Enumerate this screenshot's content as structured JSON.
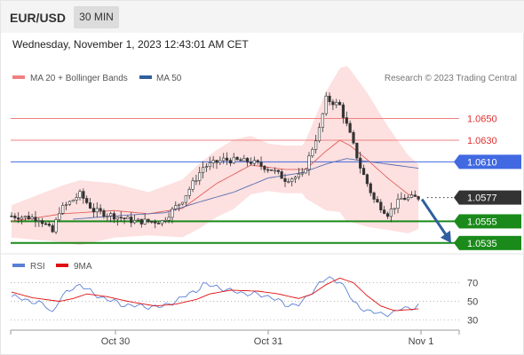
{
  "header": {
    "symbol": "EUR/USD",
    "timeframe": "30 MIN"
  },
  "datetime": "Wednesday, November 1, 2023 12:43:01 AM CET",
  "copyright": "Research © 2023 Trading Central",
  "legend": [
    {
      "label": "MA 20 + Bollinger Bands",
      "color": "#f08080"
    },
    {
      "label": "MA 50",
      "color": "#2f5f9e"
    }
  ],
  "colors": {
    "band_fill": "#fde0e0",
    "ma20": "#e0605a",
    "ma50": "#5a6fb0",
    "candle": "#333333",
    "resistance": "#f08080",
    "pivot": "#4169e1",
    "support": "#1a8a1a",
    "current": "#333333",
    "arrow": "#2f5f9e",
    "rsi": "#5a7fd6",
    "rsi_ma": "#e01010"
  },
  "chart_data": [
    {
      "type": "candlestick",
      "title": "EUR/USD 30 MIN",
      "x_ticks": [
        "Oct 30",
        "Oct 31",
        "Nov 1"
      ],
      "ylim": [
        1.0525,
        1.073
      ],
      "levels": [
        {
          "label": "1.0650",
          "value": 1.065,
          "kind": "resistance"
        },
        {
          "label": "1.0630",
          "value": 1.063,
          "kind": "resistance"
        },
        {
          "label": "1.0610",
          "value": 1.061,
          "kind": "pivot"
        },
        {
          "label": "1.0577",
          "value": 1.0577,
          "kind": "current"
        },
        {
          "label": "1.0555",
          "value": 1.0555,
          "kind": "support"
        },
        {
          "label": "1.0535",
          "value": 1.0535,
          "kind": "support"
        }
      ],
      "close_anchors": [
        [
          0,
          1.056
        ],
        [
          8,
          1.0558
        ],
        [
          12,
          1.0545
        ],
        [
          14,
          1.0565
        ],
        [
          20,
          1.058
        ],
        [
          24,
          1.0565
        ],
        [
          30,
          1.056
        ],
        [
          36,
          1.0555
        ],
        [
          44,
          1.0555
        ],
        [
          50,
          1.0575
        ],
        [
          56,
          1.0605
        ],
        [
          62,
          1.0612
        ],
        [
          70,
          1.061
        ],
        [
          76,
          1.0603
        ],
        [
          80,
          1.0594
        ],
        [
          85,
          1.0597
        ],
        [
          90,
          1.064
        ],
        [
          92,
          1.0668
        ],
        [
          96,
          1.0662
        ],
        [
          99,
          1.0635
        ],
        [
          102,
          1.0605
        ],
        [
          104,
          1.059
        ],
        [
          106,
          1.0575
        ],
        [
          110,
          1.0562
        ],
        [
          114,
          1.0576
        ],
        [
          119,
          1.0577
        ]
      ],
      "ma20_anchors": [
        [
          0,
          1.0555
        ],
        [
          15,
          1.0562
        ],
        [
          30,
          1.0565
        ],
        [
          40,
          1.0562
        ],
        [
          50,
          1.0567
        ],
        [
          60,
          1.059
        ],
        [
          70,
          1.0607
        ],
        [
          80,
          1.0603
        ],
        [
          86,
          1.0603
        ],
        [
          92,
          1.062
        ],
        [
          96,
          1.063
        ],
        [
          99,
          1.0625
        ],
        [
          104,
          1.0612
        ],
        [
          110,
          1.0595
        ],
        [
          116,
          1.058
        ],
        [
          119,
          1.0578
        ]
      ],
      "ma50_anchors": [
        [
          18,
          1.0557
        ],
        [
          30,
          1.056
        ],
        [
          45,
          1.0563
        ],
        [
          55,
          1.0573
        ],
        [
          65,
          1.0582
        ],
        [
          75,
          1.0595
        ],
        [
          85,
          1.06
        ],
        [
          92,
          1.0608
        ],
        [
          98,
          1.0613
        ],
        [
          105,
          1.061
        ],
        [
          112,
          1.0607
        ],
        [
          119,
          1.0604
        ]
      ],
      "band_half_width_anchors": [
        [
          0,
          0.0015
        ],
        [
          20,
          0.003
        ],
        [
          40,
          0.002
        ],
        [
          55,
          0.003
        ],
        [
          65,
          0.0032
        ],
        [
          75,
          0.0022
        ],
        [
          85,
          0.0022
        ],
        [
          92,
          0.0055
        ],
        [
          98,
          0.0072
        ],
        [
          104,
          0.0062
        ],
        [
          110,
          0.0048
        ],
        [
          119,
          0.003
        ]
      ],
      "forecast_arrow": [
        [
          119,
          1.0577
        ],
        [
          127,
          1.0535
        ]
      ]
    },
    {
      "type": "line",
      "title": "RSI",
      "series": [
        {
          "name": "RSI",
          "anchors": [
            [
              0,
              55
            ],
            [
              4,
              52
            ],
            [
              8,
              48
            ],
            [
              10,
              45
            ],
            [
              12,
              38
            ],
            [
              14,
              52
            ],
            [
              18,
              65
            ],
            [
              20,
              68
            ],
            [
              24,
              58
            ],
            [
              28,
              52
            ],
            [
              32,
              47
            ],
            [
              36,
              45
            ],
            [
              44,
              44
            ],
            [
              50,
              54
            ],
            [
              54,
              62
            ],
            [
              56,
              68
            ],
            [
              60,
              66
            ],
            [
              64,
              61
            ],
            [
              70,
              58
            ],
            [
              76,
              55
            ],
            [
              80,
              46
            ],
            [
              84,
              47
            ],
            [
              86,
              52
            ],
            [
              90,
              70
            ],
            [
              92,
              74
            ],
            [
              96,
              72
            ],
            [
              98,
              62
            ],
            [
              100,
              48
            ],
            [
              104,
              40
            ],
            [
              108,
              36
            ],
            [
              112,
              38
            ],
            [
              114,
              42
            ],
            [
              118,
              44
            ],
            [
              119,
              45
            ]
          ]
        },
        {
          "name": "9MA",
          "anchors": [
            [
              0,
              60
            ],
            [
              6,
              54
            ],
            [
              10,
              52
            ],
            [
              14,
              50
            ],
            [
              18,
              53
            ],
            [
              22,
              58
            ],
            [
              28,
              55
            ],
            [
              34,
              50
            ],
            [
              42,
              45
            ],
            [
              48,
              47
            ],
            [
              54,
              52
            ],
            [
              58,
              58
            ],
            [
              64,
              62
            ],
            [
              72,
              61
            ],
            [
              78,
              58
            ],
            [
              84,
              53
            ],
            [
              88,
              58
            ],
            [
              92,
              68
            ],
            [
              96,
              75
            ],
            [
              100,
              70
            ],
            [
              104,
              56
            ],
            [
              108,
              45
            ],
            [
              112,
              40
            ],
            [
              116,
              41
            ],
            [
              119,
              42
            ]
          ]
        }
      ],
      "ylim": [
        20,
        82
      ],
      "y_ticks": [
        70,
        50,
        30
      ]
    }
  ]
}
